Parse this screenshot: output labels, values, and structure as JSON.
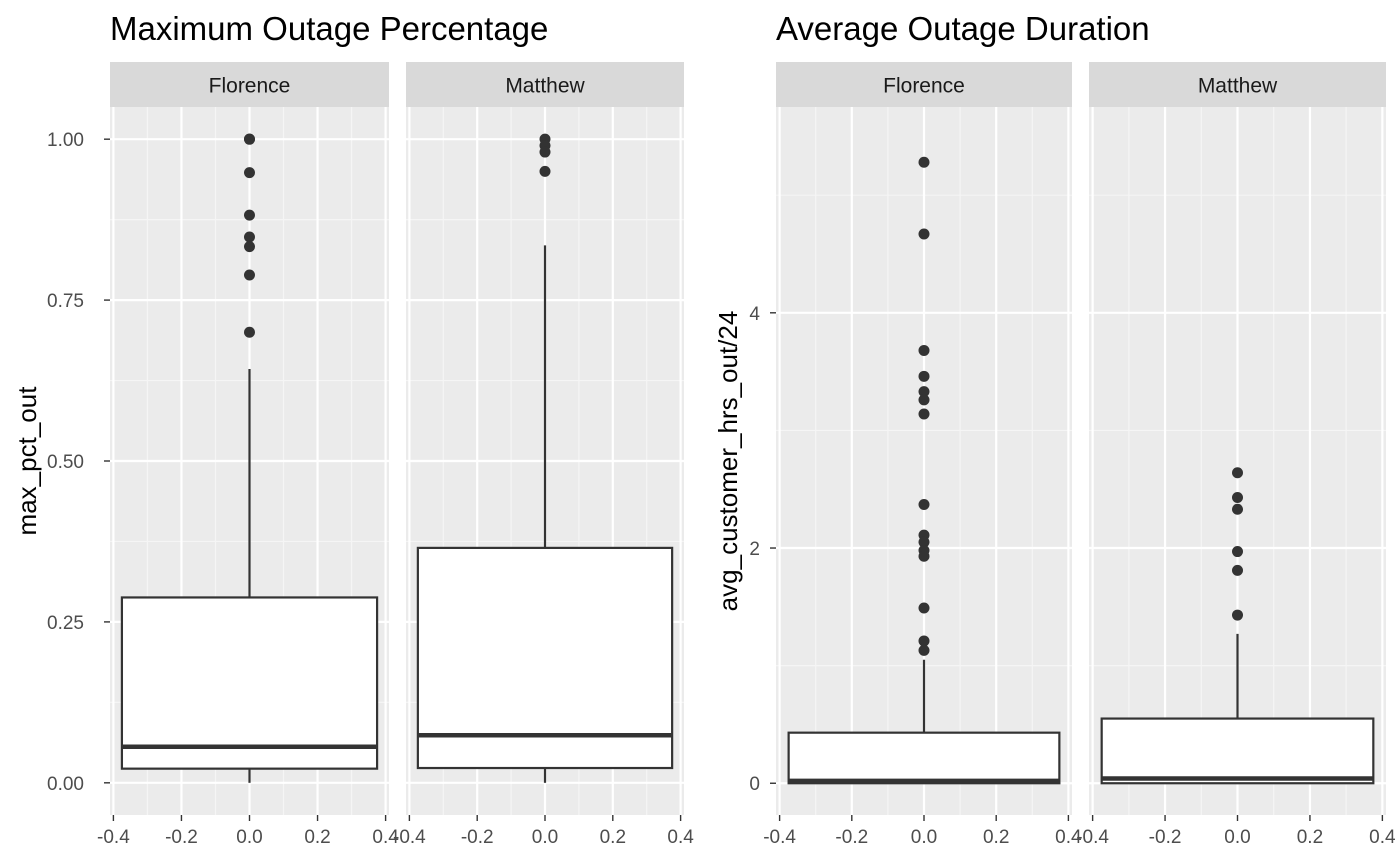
{
  "colors": {
    "panel_bg": "#ebebeb",
    "strip_bg": "#d9d9d9",
    "grid_major": "#ffffff",
    "grid_minor": "#f5f5f5",
    "box_line": "#333333",
    "box_fill": "#ffffff",
    "outlier": "#333333",
    "tick_text": "#4d4d4d",
    "title_text": "#000000"
  },
  "chart_data": [
    {
      "type": "boxplot",
      "title": "Maximum Outage Percentage",
      "ylabel": "max_pct_out",
      "xlabel": "",
      "grid": true,
      "ylim": [
        -0.05,
        1.05
      ],
      "xlim": [
        -0.41,
        0.41
      ],
      "yticks": [
        0.0,
        0.25,
        0.5,
        0.75,
        1.0
      ],
      "ytick_labels": [
        "0.00",
        "0.25",
        "0.50",
        "0.75",
        "1.00"
      ],
      "xticks": [
        -0.4,
        -0.2,
        0.0,
        0.2,
        0.4
      ],
      "xtick_labels": [
        "-0.4",
        "-0.2",
        "0.0",
        "0.2",
        "0.4"
      ],
      "facets": [
        {
          "name": "Florence",
          "box": {
            "whisker_low": 0.0,
            "q1": 0.022,
            "median": 0.056,
            "q3": 0.288,
            "whisker_high": 0.643
          },
          "outliers": [
            1.0,
            1.0,
            0.948,
            0.882,
            0.848,
            0.833,
            0.789,
            0.7
          ]
        },
        {
          "name": "Matthew",
          "box": {
            "whisker_low": 0.0,
            "q1": 0.023,
            "median": 0.074,
            "q3": 0.365,
            "whisker_high": 0.835
          },
          "outliers": [
            1.0,
            0.99,
            0.98,
            0.95
          ]
        }
      ]
    },
    {
      "type": "boxplot",
      "title": "Average Outage Duration",
      "ylabel": "avg_customer_hrs_out/24",
      "xlabel": "",
      "grid": true,
      "ylim": [
        -0.27,
        5.75
      ],
      "xlim": [
        -0.41,
        0.41
      ],
      "yticks": [
        0,
        2,
        4
      ],
      "ytick_labels": [
        "0",
        "2",
        "4"
      ],
      "xticks": [
        -0.4,
        -0.2,
        0.0,
        0.2,
        0.4
      ],
      "xtick_labels": [
        "-0.4",
        "-0.2",
        "0.0",
        "0.2",
        "0.4"
      ],
      "facets": [
        {
          "name": "Florence",
          "box": {
            "whisker_low": 0.0,
            "q1": 0.0,
            "median": 0.02,
            "q3": 0.43,
            "whisker_high": 1.05
          },
          "outliers": [
            5.28,
            4.67,
            3.68,
            3.46,
            3.33,
            3.26,
            3.14,
            2.37,
            2.11,
            2.05,
            1.98,
            1.93,
            1.49,
            1.21,
            1.13
          ]
        },
        {
          "name": "Matthew",
          "box": {
            "whisker_low": 0.0,
            "q1": 0.0,
            "median": 0.04,
            "q3": 0.55,
            "whisker_high": 1.27
          },
          "outliers": [
            2.64,
            2.43,
            2.33,
            1.97,
            1.81,
            1.43
          ]
        }
      ]
    }
  ]
}
